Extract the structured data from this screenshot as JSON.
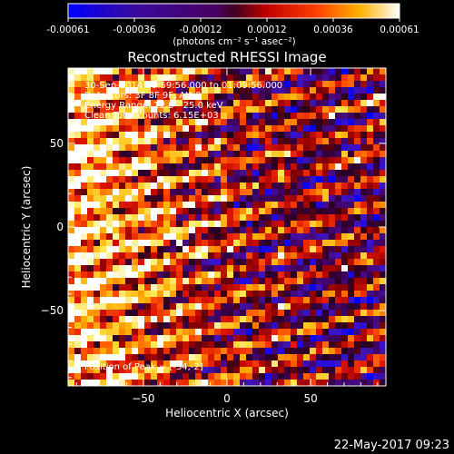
{
  "colorbar": {
    "ticks": [
      "-0.00061",
      "-0.00036",
      "-0.00012",
      "0.00012",
      "0.00036",
      "0.00061"
    ],
    "units_label": "(photons cm⁻² s⁻¹ asec⁻²)"
  },
  "title": "Reconstructed RHESSI Image",
  "info": {
    "time_range": "30-Sep-2014 00:59:56.000 to 01:09:56.000",
    "detectors": "Detectors: 3F 8F 9F, Att 0",
    "energy_range": "Energy Range: 12.0 - 25.0 keV",
    "counts": "Clean    Total counts: 6.15E+03",
    "peak": "Position of Peak = [-34,-2]"
  },
  "footer_date": "22-May-2017 09:23",
  "colors": {
    "background": "#000000",
    "axis": "#ffffff"
  },
  "chart_data": {
    "type": "heatmap",
    "title": "Reconstructed RHESSI Image",
    "xlabel": "Heliocentric X (arcsec)",
    "ylabel": "Heliocentric Y (arcsec)",
    "xlim": [
      -95,
      95
    ],
    "ylim": [
      -95,
      95
    ],
    "x_ticks": [
      -50,
      0,
      50
    ],
    "y_ticks": [
      -50,
      0,
      50
    ],
    "x_tick_labels": [
      "−50",
      "0",
      "50"
    ],
    "y_tick_labels": [
      "−50",
      "0",
      "50"
    ],
    "colorbar_range": [
      -0.00061,
      0.00061
    ],
    "colormap": "blue-purple-red-yellow-white",
    "peak_position": [
      -34,
      -2
    ],
    "grid_pattern": "striped diagonal bands of positive (red/yellow) and negative (purple/blue) flux, brightest along the left edge"
  }
}
